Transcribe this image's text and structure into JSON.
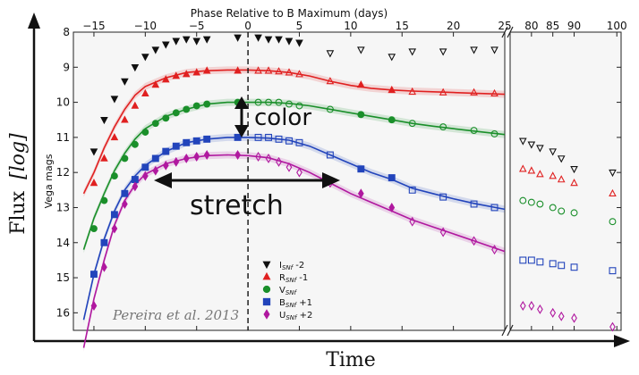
{
  "chart_data": {
    "type": "scatter",
    "title": "",
    "x_label": "Phase Relative to B Maximum (days)",
    "y_label": "Vega mags",
    "outer_x_label": "Time",
    "outer_y_label_main": "Flux",
    "outer_y_label_log": "[log]",
    "credit": "Pereira et al. 2013",
    "y_inverted": true,
    "ylim": [
      8,
      16.5
    ],
    "y_ticks": [
      8,
      9,
      10,
      11,
      12,
      13,
      14,
      15,
      16
    ],
    "x_axis_segments": [
      {
        "range": [
          -17,
          25
        ],
        "ticks": [
          -15,
          -10,
          -5,
          0,
          5,
          10,
          15,
          20,
          25
        ]
      },
      {
        "range": [
          75,
          101
        ],
        "ticks": [
          80,
          85,
          90,
          100
        ]
      }
    ],
    "x_tick_labels": [
      "−15",
      "−10",
      "−5",
      "0",
      "5",
      "10",
      "15",
      "20",
      "25",
      "80",
      "85",
      "90",
      "100"
    ],
    "b_maximum_phase": 0,
    "legend_position": "bottom-center",
    "annotations": {
      "color": "color",
      "stretch": "stretch"
    },
    "series": [
      {
        "name": "I",
        "sub": "SNf",
        "offset": "-2",
        "color": "#111111",
        "marker": "triangle-down",
        "points": [
          [
            -15,
            11.4
          ],
          [
            -14,
            10.5
          ],
          [
            -13,
            9.9
          ],
          [
            -12,
            9.4
          ],
          [
            -11,
            9.0
          ],
          [
            -10,
            8.7
          ],
          [
            -9,
            8.5
          ],
          [
            -8,
            8.35
          ],
          [
            -7,
            8.25
          ],
          [
            -6,
            8.2
          ],
          [
            -5,
            8.25
          ],
          [
            -4,
            8.2
          ],
          [
            -1,
            8.15
          ],
          [
            1,
            8.15
          ],
          [
            2,
            8.2
          ],
          [
            3,
            8.2
          ],
          [
            4,
            8.25
          ],
          [
            5,
            8.3
          ],
          [
            8,
            8.6
          ],
          [
            11,
            8.5
          ],
          [
            14,
            8.7
          ],
          [
            16,
            8.55
          ],
          [
            19,
            8.55
          ],
          [
            22,
            8.5
          ],
          [
            24,
            8.5
          ],
          [
            78,
            11.1
          ],
          [
            80,
            11.2
          ],
          [
            82,
            11.3
          ],
          [
            85,
            11.4
          ],
          [
            87,
            11.6
          ],
          [
            90,
            11.9
          ],
          [
            99,
            12.0
          ]
        ]
      },
      {
        "name": "R",
        "sub": "SNf",
        "offset": "-1",
        "color": "#e02020",
        "marker": "triangle-up",
        "points": [
          [
            -15,
            12.3
          ],
          [
            -14,
            11.6
          ],
          [
            -13,
            11.0
          ],
          [
            -12,
            10.5
          ],
          [
            -11,
            10.1
          ],
          [
            -10,
            9.75
          ],
          [
            -9,
            9.5
          ],
          [
            -8,
            9.35
          ],
          [
            -7,
            9.25
          ],
          [
            -6,
            9.2
          ],
          [
            -5,
            9.15
          ],
          [
            -4,
            9.1
          ],
          [
            -1,
            9.1
          ],
          [
            1,
            9.1
          ],
          [
            2,
            9.1
          ],
          [
            3,
            9.12
          ],
          [
            4,
            9.15
          ],
          [
            5,
            9.2
          ],
          [
            8,
            9.4
          ],
          [
            11,
            9.5
          ],
          [
            14,
            9.65
          ],
          [
            16,
            9.7
          ],
          [
            19,
            9.72
          ],
          [
            22,
            9.72
          ],
          [
            24,
            9.75
          ],
          [
            78,
            11.9
          ],
          [
            80,
            11.95
          ],
          [
            82,
            12.05
          ],
          [
            85,
            12.1
          ],
          [
            87,
            12.2
          ],
          [
            90,
            12.3
          ],
          [
            99,
            12.6
          ]
        ]
      },
      {
        "name": "V",
        "sub": "SNf",
        "offset": "",
        "color": "#1a8f2a",
        "marker": "circle",
        "points": [
          [
            -15,
            13.6
          ],
          [
            -14,
            12.8
          ],
          [
            -13,
            12.1
          ],
          [
            -12,
            11.6
          ],
          [
            -11,
            11.2
          ],
          [
            -10,
            10.85
          ],
          [
            -9,
            10.6
          ],
          [
            -8,
            10.45
          ],
          [
            -7,
            10.3
          ],
          [
            -6,
            10.2
          ],
          [
            -5,
            10.1
          ],
          [
            -4,
            10.05
          ],
          [
            -1,
            10.0
          ],
          [
            1,
            10.0
          ],
          [
            2,
            10.0
          ],
          [
            3,
            10.0
          ],
          [
            4,
            10.05
          ],
          [
            5,
            10.1
          ],
          [
            8,
            10.2
          ],
          [
            11,
            10.35
          ],
          [
            14,
            10.5
          ],
          [
            16,
            10.6
          ],
          [
            19,
            10.7
          ],
          [
            22,
            10.8
          ],
          [
            24,
            10.9
          ],
          [
            78,
            12.8
          ],
          [
            80,
            12.85
          ],
          [
            82,
            12.9
          ],
          [
            85,
            13.0
          ],
          [
            87,
            13.1
          ],
          [
            90,
            13.15
          ],
          [
            99,
            13.4
          ]
        ]
      },
      {
        "name": "B",
        "sub": "SNf",
        "offset": "+1",
        "color": "#2244bb",
        "marker": "square",
        "points": [
          [
            -15,
            14.9
          ],
          [
            -14,
            14.0
          ],
          [
            -13,
            13.2
          ],
          [
            -12,
            12.6
          ],
          [
            -11,
            12.2
          ],
          [
            -10,
            11.85
          ],
          [
            -9,
            11.6
          ],
          [
            -8,
            11.4
          ],
          [
            -7,
            11.25
          ],
          [
            -6,
            11.15
          ],
          [
            -5,
            11.1
          ],
          [
            -4,
            11.05
          ],
          [
            -1,
            11.0
          ],
          [
            1,
            11.0
          ],
          [
            2,
            11.0
          ],
          [
            3,
            11.05
          ],
          [
            4,
            11.1
          ],
          [
            5,
            11.15
          ],
          [
            8,
            11.5
          ],
          [
            11,
            11.9
          ],
          [
            14,
            12.15
          ],
          [
            16,
            12.5
          ],
          [
            19,
            12.7
          ],
          [
            22,
            12.9
          ],
          [
            24,
            13.0
          ],
          [
            78,
            14.5
          ],
          [
            80,
            14.5
          ],
          [
            82,
            14.55
          ],
          [
            85,
            14.6
          ],
          [
            87,
            14.65
          ],
          [
            90,
            14.7
          ],
          [
            99,
            14.8
          ]
        ]
      },
      {
        "name": "U",
        "sub": "SNf",
        "offset": "+2",
        "color": "#b0189f",
        "marker": "diamond",
        "points": [
          [
            -15,
            15.8
          ],
          [
            -14,
            14.7
          ],
          [
            -13,
            13.6
          ],
          [
            -12,
            12.9
          ],
          [
            -11,
            12.4
          ],
          [
            -10,
            12.1
          ],
          [
            -9,
            11.95
          ],
          [
            -8,
            11.8
          ],
          [
            -7,
            11.7
          ],
          [
            -6,
            11.6
          ],
          [
            -5,
            11.55
          ],
          [
            -4,
            11.5
          ],
          [
            -1,
            11.5
          ],
          [
            1,
            11.55
          ],
          [
            2,
            11.6
          ],
          [
            3,
            11.7
          ],
          [
            4,
            11.85
          ],
          [
            5,
            12.0
          ],
          [
            8,
            12.3
          ],
          [
            11,
            12.6
          ],
          [
            14,
            13.0
          ],
          [
            16,
            13.4
          ],
          [
            19,
            13.7
          ],
          [
            22,
            13.95
          ],
          [
            24,
            14.2
          ],
          [
            78,
            15.8
          ],
          [
            80,
            15.8
          ],
          [
            82,
            15.9
          ],
          [
            85,
            16.0
          ],
          [
            87,
            16.1
          ],
          [
            90,
            16.15
          ],
          [
            99,
            16.4
          ]
        ]
      }
    ],
    "fits": [
      {
        "band": "R",
        "color": "#e02020",
        "points": [
          [
            -16,
            12.6
          ],
          [
            -15,
            12.0
          ],
          [
            -14,
            11.3
          ],
          [
            -13,
            10.7
          ],
          [
            -12,
            10.2
          ],
          [
            -11,
            9.8
          ],
          [
            -10,
            9.55
          ],
          [
            -8,
            9.3
          ],
          [
            -6,
            9.15
          ],
          [
            -4,
            9.1
          ],
          [
            -2,
            9.08
          ],
          [
            0,
            9.08
          ],
          [
            2,
            9.1
          ],
          [
            4,
            9.15
          ],
          [
            6,
            9.25
          ],
          [
            8,
            9.4
          ],
          [
            10,
            9.52
          ],
          [
            12,
            9.6
          ],
          [
            14,
            9.65
          ],
          [
            16,
            9.68
          ],
          [
            18,
            9.7
          ],
          [
            20,
            9.72
          ],
          [
            22,
            9.74
          ],
          [
            25,
            9.77
          ]
        ]
      },
      {
        "band": "V",
        "color": "#1a8f2a",
        "points": [
          [
            -16,
            14.2
          ],
          [
            -15,
            13.3
          ],
          [
            -14,
            12.6
          ],
          [
            -13,
            11.95
          ],
          [
            -12,
            11.45
          ],
          [
            -11,
            11.05
          ],
          [
            -10,
            10.75
          ],
          [
            -8,
            10.4
          ],
          [
            -6,
            10.2
          ],
          [
            -4,
            10.05
          ],
          [
            -2,
            10.0
          ],
          [
            0,
            10.0
          ],
          [
            2,
            10.0
          ],
          [
            4,
            10.03
          ],
          [
            6,
            10.1
          ],
          [
            8,
            10.2
          ],
          [
            10,
            10.3
          ],
          [
            12,
            10.4
          ],
          [
            14,
            10.5
          ],
          [
            16,
            10.6
          ],
          [
            18,
            10.68
          ],
          [
            20,
            10.75
          ],
          [
            22,
            10.82
          ],
          [
            25,
            10.92
          ]
        ]
      },
      {
        "band": "B",
        "color": "#2244bb",
        "points": [
          [
            -16,
            16.2
          ],
          [
            -15,
            14.9
          ],
          [
            -14,
            13.9
          ],
          [
            -13,
            13.1
          ],
          [
            -12,
            12.5
          ],
          [
            -11,
            12.1
          ],
          [
            -10,
            11.8
          ],
          [
            -8,
            11.4
          ],
          [
            -6,
            11.15
          ],
          [
            -4,
            11.05
          ],
          [
            -2,
            11.0
          ],
          [
            0,
            11.0
          ],
          [
            2,
            11.02
          ],
          [
            4,
            11.08
          ],
          [
            6,
            11.25
          ],
          [
            8,
            11.5
          ],
          [
            10,
            11.75
          ],
          [
            12,
            12.0
          ],
          [
            14,
            12.2
          ],
          [
            16,
            12.45
          ],
          [
            18,
            12.6
          ],
          [
            20,
            12.75
          ],
          [
            22,
            12.88
          ],
          [
            25,
            13.05
          ]
        ]
      },
      {
        "band": "U",
        "color": "#b0189f",
        "points": [
          [
            -16,
            17.0
          ],
          [
            -15,
            15.6
          ],
          [
            -14,
            14.5
          ],
          [
            -13,
            13.5
          ],
          [
            -12,
            12.8
          ],
          [
            -11,
            12.35
          ],
          [
            -10,
            12.05
          ],
          [
            -8,
            11.75
          ],
          [
            -6,
            11.6
          ],
          [
            -4,
            11.52
          ],
          [
            -2,
            11.5
          ],
          [
            0,
            11.52
          ],
          [
            2,
            11.58
          ],
          [
            4,
            11.75
          ],
          [
            6,
            12.0
          ],
          [
            8,
            12.3
          ],
          [
            10,
            12.6
          ],
          [
            12,
            12.85
          ],
          [
            14,
            13.1
          ],
          [
            16,
            13.35
          ],
          [
            18,
            13.55
          ],
          [
            20,
            13.75
          ],
          [
            22,
            13.95
          ],
          [
            25,
            14.25
          ]
        ]
      }
    ]
  }
}
